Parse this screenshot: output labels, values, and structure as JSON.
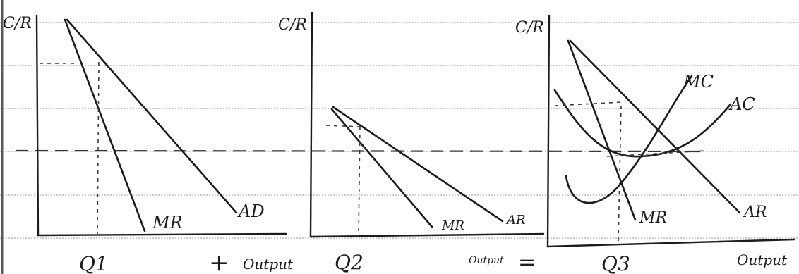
{
  "diagram": {
    "panel1": {
      "y_label": "C/R",
      "curve_labels": {
        "mr": "MR",
        "ad": "AD"
      },
      "quantity_label": "Q1",
      "x_label": "Output"
    },
    "panel2": {
      "y_label": "C/R",
      "curve_labels": {
        "mr": "MR",
        "ar": "AR"
      },
      "quantity_label": "Q2",
      "x_label": "Output"
    },
    "panel3": {
      "y_label": "C/R",
      "curve_labels": {
        "mc": "MC",
        "ac": "AC",
        "mr": "MR",
        "ar": "AR"
      },
      "quantity_label": "Q3",
      "x_label": "Output"
    },
    "operators": {
      "plus": "+",
      "equals": "="
    }
  }
}
